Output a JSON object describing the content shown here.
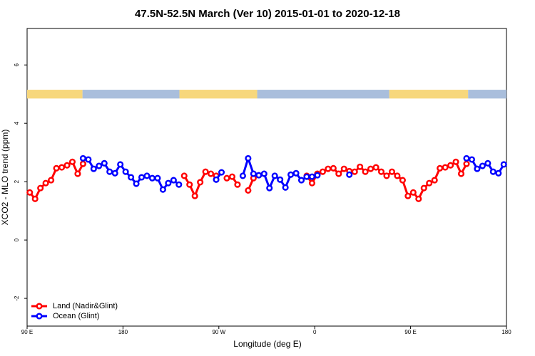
{
  "chart_data": {
    "type": "line",
    "title": "47.5N-52.5N March (Ver 10)   2015-01-01 to 2020-12-18",
    "x_label": "Longitude (deg E)",
    "y_label": "XCO2 - MLO trend (ppm)",
    "xlim": [
      90,
      540
    ],
    "ylim": [
      -2.95,
      7.25
    ],
    "xticks": [
      {
        "value": 90,
        "label": "90 E"
      },
      180,
      {
        "value": 270,
        "label": "90 W"
      },
      {
        "value": 360,
        "label": "0"
      },
      {
        "value": 450,
        "label": "90 E"
      },
      180
    ],
    "yticks": [
      -2,
      0,
      2,
      4,
      6
    ],
    "legend": "bottom-left",
    "strip": {
      "y": [
        4.85,
        5.15
      ],
      "segments": [
        {
          "x": [
            90,
            142
          ],
          "color": "#f7d77c"
        },
        {
          "x": [
            142,
            233
          ],
          "color": "#a9bedc"
        },
        {
          "x": [
            233,
            306
          ],
          "color": "#f7d77c"
        },
        {
          "x": [
            306,
            430
          ],
          "color": "#a9bedc"
        },
        {
          "x": [
            430,
            504
          ],
          "color": "#f7d77c"
        },
        {
          "x": [
            504,
            540
          ],
          "color": "#a9bedc"
        }
      ]
    },
    "x": [
      92.5,
      97.5,
      102.5,
      107.5,
      112.5,
      117.5,
      122.5,
      127.5,
      132.5,
      137.5,
      142.5,
      147.5,
      152.5,
      157.5,
      162.5,
      167.5,
      172.5,
      177.5,
      182.5,
      187.5,
      192.5,
      197.5,
      202.5,
      207.5,
      212.5,
      217.5,
      222.5,
      227.5,
      232.5,
      237.5,
      242.5,
      247.5,
      252.5,
      257.5,
      262.5,
      267.5,
      272.5,
      277.5,
      282.5,
      287.5,
      292.5,
      297.5,
      302.5,
      307.5,
      312.5,
      317.5,
      322.5,
      327.5,
      332.5,
      337.5,
      342.5,
      347.5,
      352.5,
      357.5,
      362.5,
      367.5,
      372.5,
      377.5,
      382.5,
      387.5,
      392.5,
      397.5,
      402.5,
      407.5,
      412.5,
      417.5,
      422.5,
      427.5,
      432.5,
      437.5,
      442.5,
      447.5,
      452.5,
      457.5,
      462.5,
      467.5,
      472.5,
      477.5,
      482.5,
      487.5,
      492.5,
      497.5,
      502.5,
      507.5,
      512.5,
      517.5,
      522.5,
      527.5,
      532.5,
      537.5
    ],
    "series": [
      {
        "name": "Land (Nadir&Glint)",
        "color": "#ff0000",
        "values": [
          1.63,
          1.41,
          1.78,
          1.95,
          2.05,
          2.46,
          2.49,
          2.56,
          2.68,
          2.27,
          2.61,
          null,
          null,
          null,
          null,
          null,
          null,
          null,
          null,
          null,
          null,
          null,
          null,
          null,
          null,
          null,
          null,
          null,
          null,
          2.2,
          1.9,
          1.51,
          1.98,
          2.34,
          2.27,
          2.2,
          null,
          2.12,
          2.17,
          1.9,
          null,
          1.7,
          2.12,
          null,
          null,
          null,
          null,
          null,
          null,
          null,
          null,
          null,
          2.2,
          1.95,
          2.27,
          2.34,
          2.44,
          2.46,
          2.27,
          2.44,
          2.36,
          2.34,
          2.51,
          2.34,
          2.44,
          2.49,
          2.34,
          2.2,
          2.34,
          2.2,
          2.05,
          1.51,
          1.63,
          1.41,
          1.78,
          1.95,
          2.05,
          2.46,
          2.49,
          2.56,
          2.68,
          2.27,
          2.61,
          null,
          null,
          null,
          null,
          null,
          null,
          null
        ]
      },
      {
        "name": "Ocean (Glint)",
        "color": "#0000ff",
        "values": [
          null,
          null,
          null,
          null,
          null,
          null,
          null,
          null,
          null,
          null,
          2.8,
          2.76,
          2.44,
          2.54,
          2.63,
          2.34,
          2.29,
          2.59,
          2.34,
          2.15,
          1.93,
          2.15,
          2.2,
          2.12,
          2.12,
          1.73,
          1.95,
          2.05,
          1.9,
          null,
          null,
          null,
          null,
          null,
          null,
          2.07,
          2.32,
          null,
          null,
          null,
          2.2,
          2.8,
          2.27,
          2.22,
          2.27,
          1.78,
          2.2,
          2.07,
          1.8,
          2.24,
          2.29,
          2.05,
          2.17,
          2.17,
          2.22,
          null,
          null,
          null,
          null,
          null,
          2.24,
          null,
          null,
          null,
          null,
          null,
          null,
          null,
          null,
          null,
          null,
          null,
          null,
          null,
          null,
          null,
          null,
          null,
          null,
          null,
          null,
          null,
          2.8,
          2.76,
          2.44,
          2.54,
          2.63,
          2.34,
          2.29,
          2.59
        ]
      }
    ]
  }
}
